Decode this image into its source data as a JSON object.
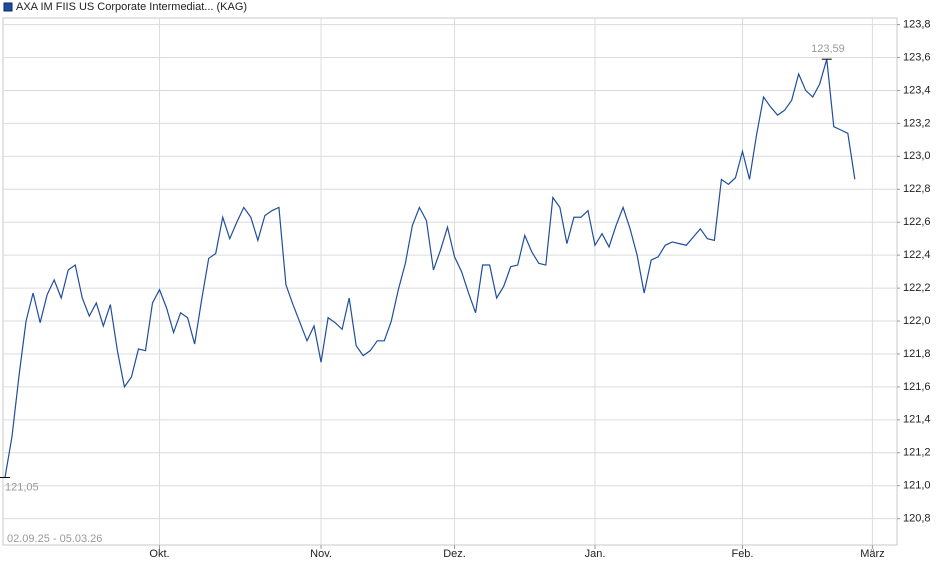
{
  "chart_data": {
    "type": "line",
    "title": "AXA IM FIIS US Corporate Intermediat... (KAG)",
    "date_range": "02.09.25 - 05.03.26",
    "color": "#1f4e9c",
    "grid": true,
    "values": [
      121.05,
      121.3,
      121.67,
      122.0,
      122.17,
      121.99,
      122.16,
      122.25,
      122.14,
      122.31,
      122.34,
      122.14,
      122.03,
      122.11,
      121.97,
      122.1,
      121.82,
      121.6,
      121.66,
      121.83,
      121.82,
      122.11,
      122.19,
      122.08,
      121.93,
      122.05,
      122.02,
      121.86,
      122.13,
      122.38,
      122.41,
      122.63,
      122.5,
      122.6,
      122.69,
      122.63,
      122.49,
      122.64,
      122.67,
      122.69,
      122.22,
      122.1,
      121.99,
      121.88,
      121.97,
      121.75,
      122.02,
      121.99,
      121.95,
      122.14,
      121.85,
      121.79,
      121.82,
      121.88,
      121.88,
      122.0,
      122.19,
      122.35,
      122.58,
      122.69,
      122.61,
      122.31,
      122.43,
      122.57,
      122.39,
      122.3,
      122.17,
      122.05,
      122.34,
      122.34,
      122.14,
      122.21,
      122.33,
      122.34,
      122.52,
      122.42,
      122.35,
      122.34,
      122.75,
      122.69,
      122.47,
      122.63,
      122.63,
      122.67,
      122.46,
      122.53,
      122.45,
      122.58,
      122.69,
      122.56,
      122.4,
      122.17,
      122.37,
      122.39,
      122.46,
      122.48,
      122.47,
      122.46,
      122.51,
      122.56,
      122.5,
      122.49,
      122.86,
      122.83,
      122.87,
      123.03,
      122.86,
      123.13,
      123.36,
      123.3,
      123.25,
      123.28,
      123.34,
      123.5,
      123.4,
      123.36,
      123.44,
      123.59,
      123.18,
      123.16,
      123.14,
      122.86
    ],
    "xlim": [
      0,
      127
    ],
    "xticks": [
      {
        "value": 22,
        "label": "Okt."
      },
      {
        "value": 45,
        "label": "Nov."
      },
      {
        "value": 64,
        "label": "Dez."
      },
      {
        "value": 84,
        "label": "Jan."
      },
      {
        "value": 105,
        "label": "Feb."
      },
      {
        "value": 123.5,
        "label": "März"
      }
    ],
    "ylim": [
      120.64,
      123.84
    ],
    "yticks": [
      {
        "value": 120.8,
        "label": "120,8"
      },
      {
        "value": 121.0,
        "label": "121,0"
      },
      {
        "value": 121.2,
        "label": "121,2"
      },
      {
        "value": 121.4,
        "label": "121,4"
      },
      {
        "value": 121.6,
        "label": "121,6"
      },
      {
        "value": 121.8,
        "label": "121,8"
      },
      {
        "value": 122.0,
        "label": "122,0"
      },
      {
        "value": 122.2,
        "label": "122,2"
      },
      {
        "value": 122.4,
        "label": "122,4"
      },
      {
        "value": 122.6,
        "label": "122,6"
      },
      {
        "value": 122.8,
        "label": "122,8"
      },
      {
        "value": 123.0,
        "label": "123,0"
      },
      {
        "value": 123.2,
        "label": "123,2"
      },
      {
        "value": 123.4,
        "label": "123,4"
      },
      {
        "value": 123.6,
        "label": "123,6"
      },
      {
        "value": 123.8,
        "label": "123,8"
      }
    ],
    "max_label": {
      "value": 123.59,
      "label": "123,59"
    },
    "min_label": {
      "value": 121.05,
      "label": "121,05"
    }
  }
}
